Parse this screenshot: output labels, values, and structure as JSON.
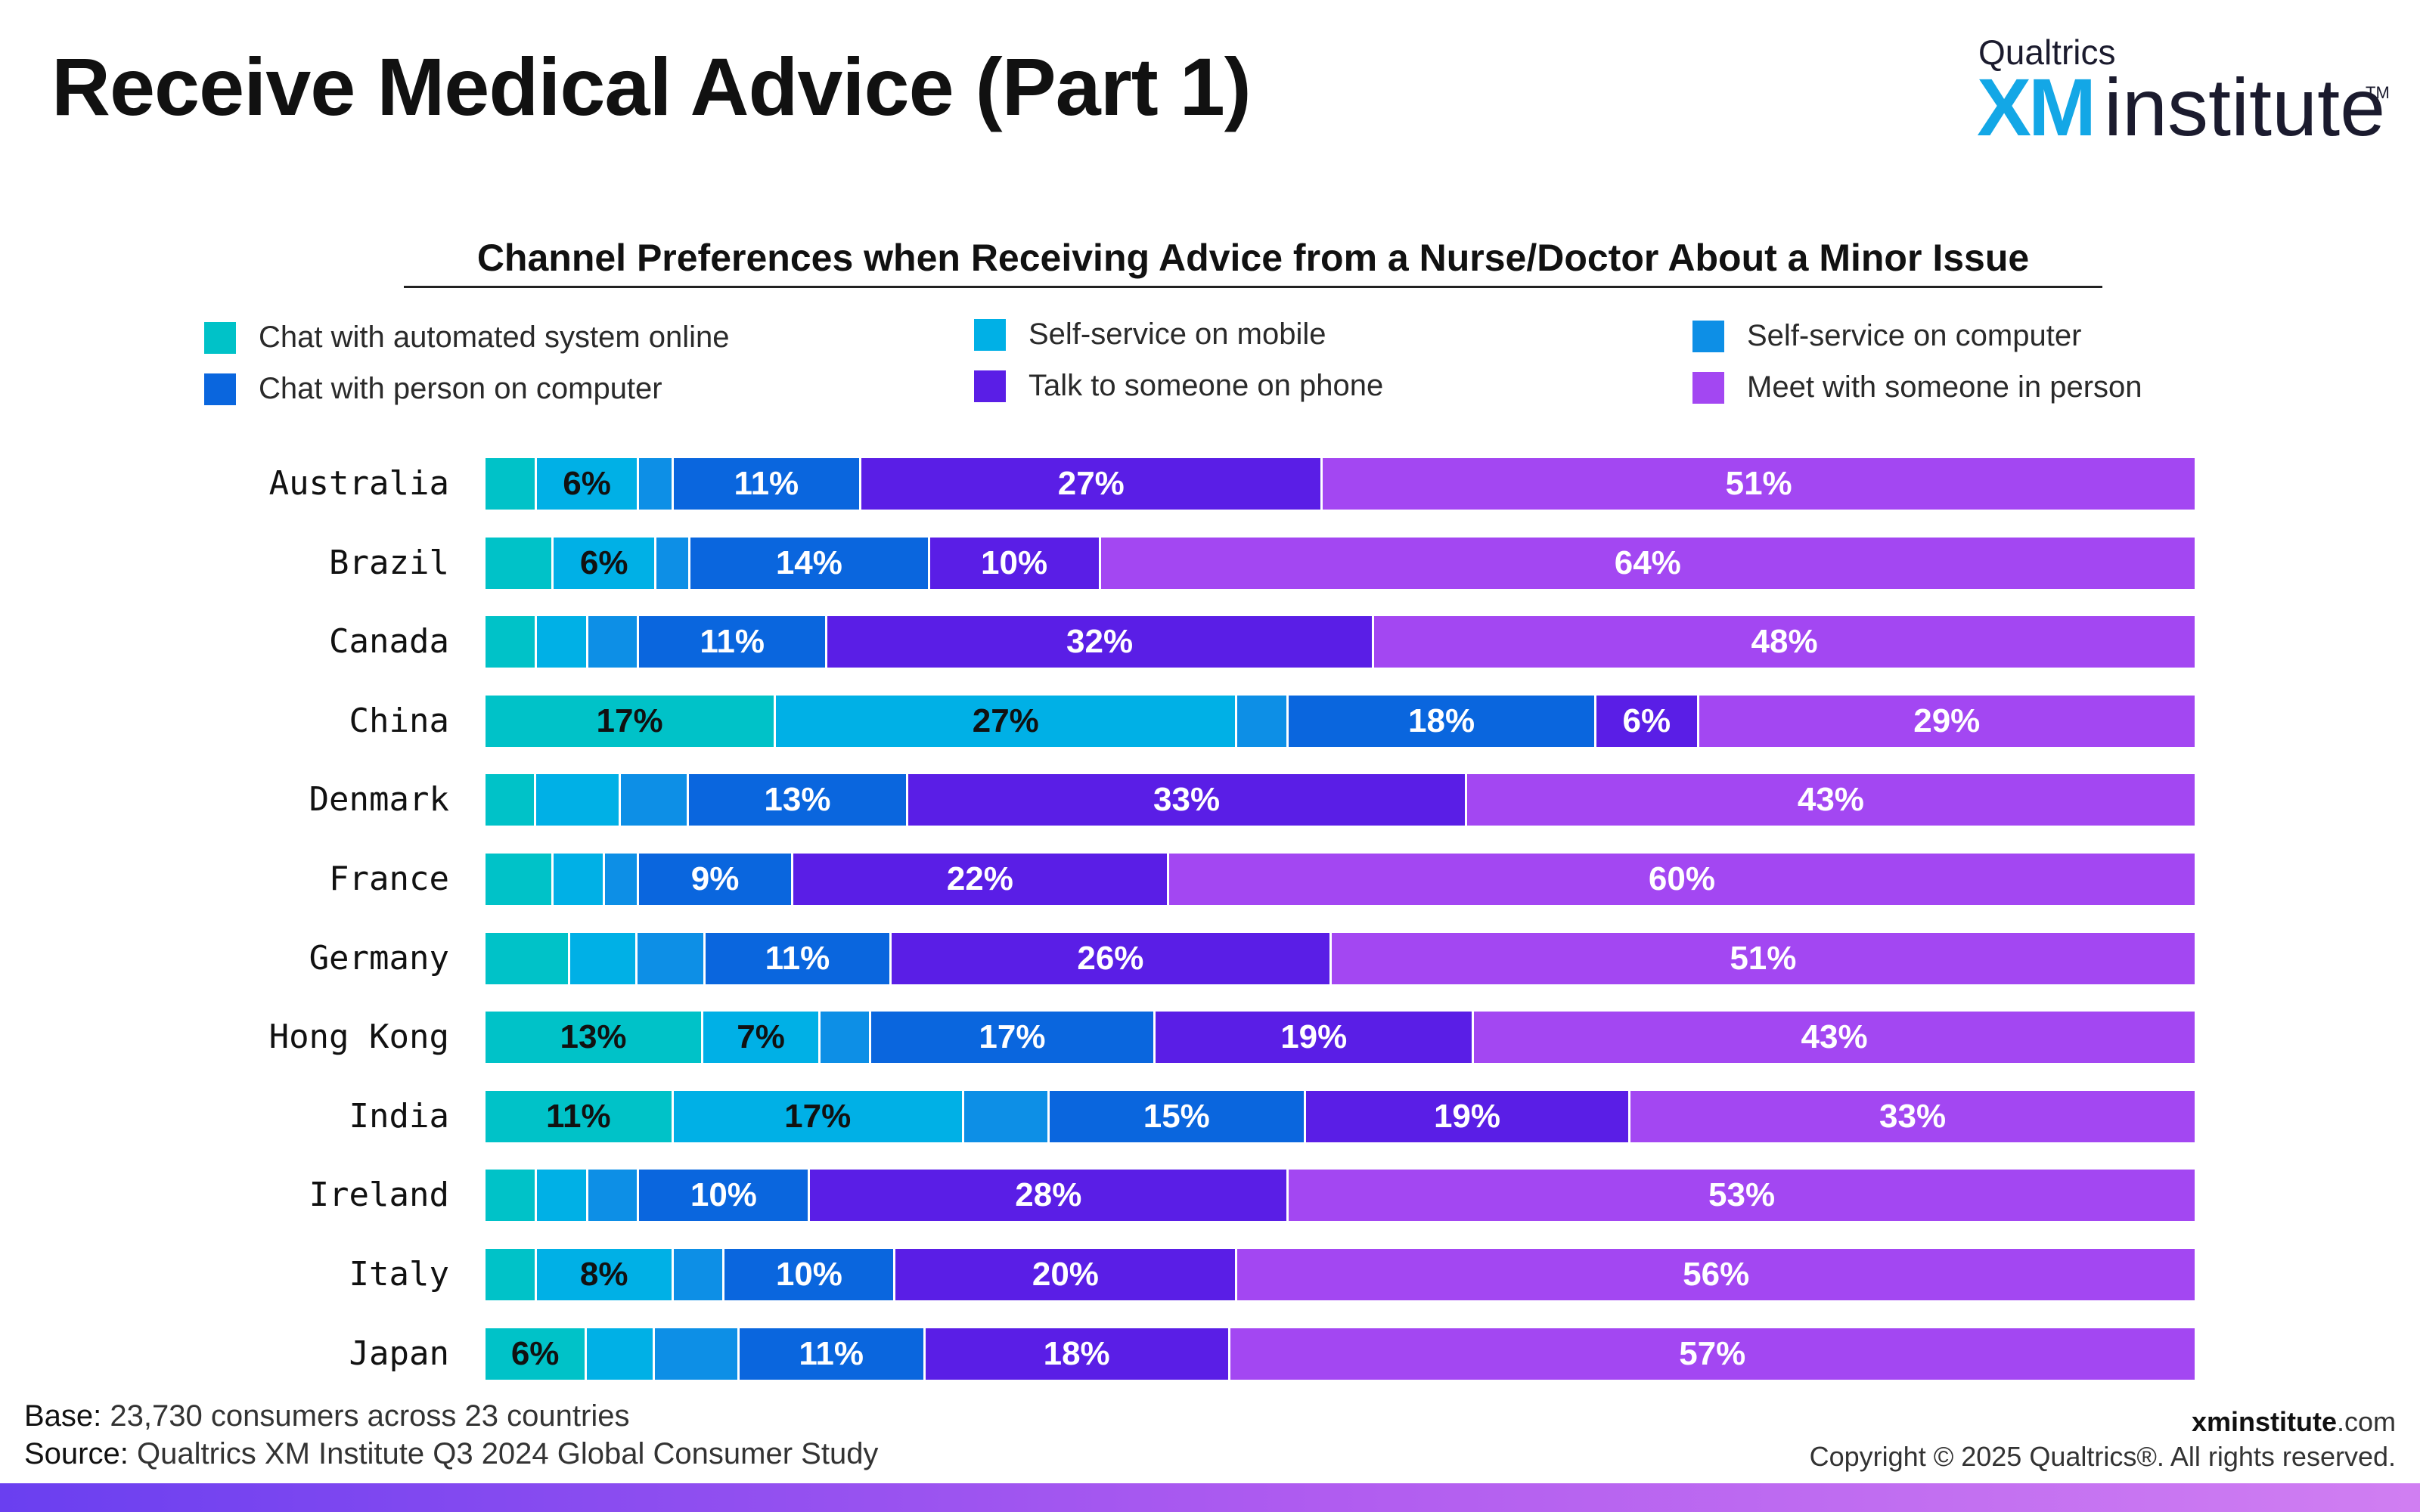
{
  "title": "Receive Medical Advice (Part 1)",
  "logo": {
    "top": "Qualtrics",
    "xm": "XM",
    "institute": "institute",
    "tm": "TM"
  },
  "chart_data": {
    "type": "bar",
    "orientation": "horizontal",
    "stacked": true,
    "title": "Channel Preferences when Receiving Advice from a Nurse/Doctor About a Minor Issue",
    "xlabel": "",
    "ylabel": "",
    "legend_position": "top",
    "grid": false,
    "categories": [
      "Australia",
      "Brazil",
      "Canada",
      "China",
      "Denmark",
      "France",
      "Germany",
      "Hong Kong",
      "India",
      "Ireland",
      "Italy",
      "Japan"
    ],
    "series": [
      {
        "name": "Chat with automated system online",
        "color": "#00c2c8",
        "values": [
          3,
          4,
          3,
          17,
          3,
          4,
          5,
          13,
          11,
          3,
          3,
          6
        ],
        "labels": [
          "",
          "",
          "",
          "17%",
          "",
          "",
          "",
          "13%",
          "11%",
          "",
          "",
          "6%"
        ]
      },
      {
        "name": "Self-service on mobile",
        "color": "#00b0e6",
        "values": [
          6,
          6,
          3,
          27,
          5,
          3,
          4,
          7,
          17,
          3,
          8,
          4
        ],
        "labels": [
          "6%",
          "6%",
          "",
          "27%",
          "",
          "",
          "",
          "7%",
          "17%",
          "",
          "8%",
          ""
        ]
      },
      {
        "name": "Self-service on computer",
        "color": "#0d8fe6",
        "values": [
          2,
          2,
          3,
          3,
          4,
          2,
          4,
          3,
          5,
          3,
          3,
          5
        ],
        "labels": [
          "",
          "",
          "",
          "",
          "",
          "",
          "",
          "",
          "",
          "",
          "",
          ""
        ]
      },
      {
        "name": "Chat with person on computer",
        "color": "#0a66de",
        "values": [
          11,
          14,
          11,
          18,
          13,
          9,
          11,
          17,
          15,
          10,
          10,
          11
        ],
        "labels": [
          "11%",
          "14%",
          "11%",
          "18%",
          "13%",
          "9%",
          "11%",
          "17%",
          "15%",
          "10%",
          "10%",
          "11%"
        ]
      },
      {
        "name": "Talk to someone on phone",
        "color": "#5a1ee6",
        "values": [
          27,
          10,
          32,
          6,
          33,
          22,
          26,
          19,
          19,
          28,
          20,
          18
        ],
        "labels": [
          "27%",
          "10%",
          "32%",
          "6%",
          "33%",
          "22%",
          "26%",
          "19%",
          "19%",
          "28%",
          "20%",
          "18%"
        ]
      },
      {
        "name": "Meet with someone in person",
        "color": "#a347f2",
        "values": [
          51,
          64,
          48,
          29,
          43,
          60,
          51,
          43,
          33,
          53,
          56,
          57
        ],
        "labels": [
          "51%",
          "64%",
          "48%",
          "29%",
          "43%",
          "60%",
          "51%",
          "43%",
          "33%",
          "53%",
          "56%",
          "57%"
        ]
      }
    ],
    "label_colors": [
      "#111111",
      "#111111",
      "#111111",
      "#ffffff",
      "#ffffff",
      "#ffffff"
    ]
  },
  "legend_layout": [
    {
      "series": 0
    },
    {
      "series": 1
    },
    {
      "series": 2
    },
    {
      "series": 3
    },
    {
      "series": 4
    },
    {
      "series": 5
    }
  ],
  "footer": {
    "base_key": "Base:",
    "base_text": "23,730 consumers across 23 countries",
    "source_key": "Source:",
    "source_text": "Qualtrics XM Institute Q3 2024 Global Consumer Study",
    "site_bold": "xminstitute",
    "site_rest": ".com",
    "copyright": "Copyright © 2025 Qualtrics®. All rights reserved."
  }
}
